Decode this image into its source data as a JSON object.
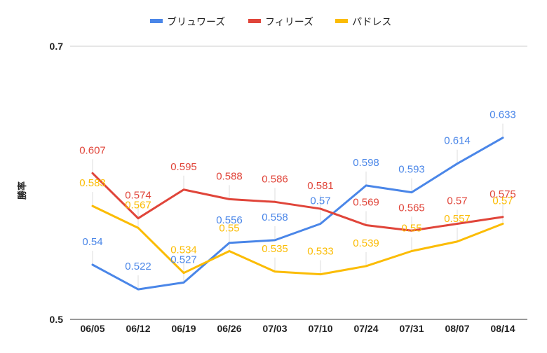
{
  "chart_data": {
    "type": "line",
    "categories": [
      "06/05",
      "06/12",
      "06/19",
      "06/26",
      "07/03",
      "07/10",
      "07/24",
      "07/31",
      "08/07",
      "08/14"
    ],
    "series": [
      {
        "name": "ブリュワーズ",
        "color": "#4a86e8",
        "values": [
          0.54,
          0.522,
          0.527,
          0.556,
          0.558,
          0.57,
          0.598,
          0.593,
          0.614,
          0.633
        ],
        "labels": [
          "0.54",
          "0.522",
          "0.527",
          "0.556",
          "0.558",
          "0.57",
          "0.598",
          "0.593",
          "0.614",
          "0.633"
        ]
      },
      {
        "name": "フィリーズ",
        "color": "#e0453a",
        "values": [
          0.607,
          0.574,
          0.595,
          0.588,
          0.586,
          0.581,
          0.569,
          0.565,
          0.57,
          0.575
        ],
        "labels": [
          "0.607",
          "0.574",
          "0.595",
          "0.588",
          "0.586",
          "0.581",
          "0.569",
          "0.565",
          "0.57",
          "0.575"
        ]
      },
      {
        "name": "パドレス",
        "color": "#fbbc04",
        "values": [
          0.583,
          0.567,
          0.534,
          0.55,
          0.535,
          0.533,
          0.539,
          0.55,
          0.557,
          0.57
        ],
        "labels": [
          "0.583",
          "0.567",
          "0.534",
          "0.55",
          "0.535",
          "0.533",
          "0.539",
          "0.55",
          "0.557",
          "0.57"
        ]
      }
    ],
    "title": "",
    "xlabel": "",
    "ylabel": "勝率",
    "ylim": [
      0.5,
      0.7
    ],
    "yticks": [
      "0.5",
      "0.7"
    ],
    "grid": true,
    "legend_position": "top"
  }
}
